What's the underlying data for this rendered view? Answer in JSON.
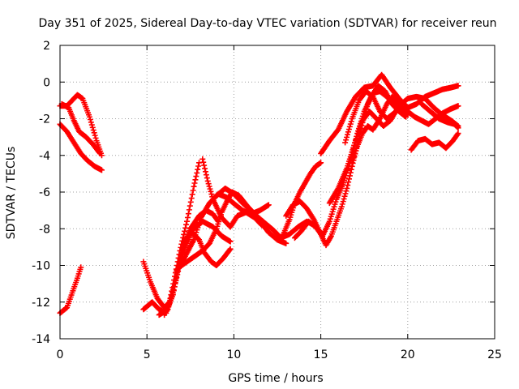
{
  "chart_data": {
    "type": "scatter",
    "title": "Day 351 of 2025, Sidereal Day-to-day VTEC variation (SDTVAR) for receiver reun",
    "xlabel": "GPS time / hours",
    "ylabel": "SDTVAR / TECUs",
    "xlim": [
      0,
      25
    ],
    "ylim": [
      -14,
      2
    ],
    "x_ticks": [
      0,
      5,
      10,
      15,
      20,
      25
    ],
    "y_ticks": [
      -14,
      -12,
      -10,
      -8,
      -6,
      -4,
      -2,
      0,
      2
    ],
    "x_tick_labels": [
      "0",
      "5",
      "10",
      "15",
      "20",
      "25"
    ],
    "y_tick_labels": [
      "-14",
      "-12",
      "-10",
      "-8",
      "-6",
      "-4",
      "-2",
      "0",
      "2"
    ],
    "grid": true,
    "marker": "plus",
    "color": "#ff0000",
    "series": [
      {
        "values": [
          [
            0.0,
            -1.3
          ],
          [
            0.4,
            -1.3
          ],
          [
            0.7,
            -1.0
          ],
          [
            1.0,
            -0.7
          ],
          [
            1.3,
            -0.9
          ],
          [
            1.7,
            -1.9
          ],
          [
            2.1,
            -3.2
          ],
          [
            2.4,
            -4.0
          ]
        ]
      },
      {
        "values": [
          [
            0.1,
            -1.2
          ],
          [
            0.5,
            -1.4
          ],
          [
            0.8,
            -2.1
          ],
          [
            1.1,
            -2.7
          ],
          [
            1.5,
            -3.0
          ],
          [
            1.9,
            -3.4
          ],
          [
            2.3,
            -3.9
          ]
        ]
      },
      {
        "values": [
          [
            0.0,
            -2.3
          ],
          [
            0.4,
            -2.7
          ],
          [
            0.8,
            -3.3
          ],
          [
            1.2,
            -3.9
          ],
          [
            1.6,
            -4.3
          ],
          [
            2.0,
            -4.6
          ],
          [
            2.4,
            -4.8
          ]
        ]
      },
      {
        "values": [
          [
            0.0,
            -12.6
          ],
          [
            0.4,
            -12.3
          ],
          [
            0.7,
            -11.5
          ],
          [
            1.0,
            -10.7
          ],
          [
            1.2,
            -10.1
          ]
        ]
      },
      {
        "values": [
          [
            4.8,
            -9.8
          ],
          [
            5.2,
            -10.9
          ],
          [
            5.6,
            -11.8
          ],
          [
            6.0,
            -12.3
          ],
          [
            6.3,
            -12.0
          ],
          [
            6.6,
            -10.6
          ],
          [
            6.9,
            -9.2
          ],
          [
            7.3,
            -7.6
          ],
          [
            7.7,
            -5.7
          ],
          [
            8.0,
            -4.4
          ]
        ]
      },
      {
        "values": [
          [
            4.8,
            -12.4
          ],
          [
            5.3,
            -12.0
          ],
          [
            5.7,
            -12.4
          ],
          [
            6.1,
            -12.6
          ],
          [
            6.5,
            -11.6
          ],
          [
            6.9,
            -9.6
          ],
          [
            7.2,
            -8.6
          ],
          [
            7.6,
            -8.2
          ],
          [
            8.0,
            -8.6
          ],
          [
            8.3,
            -9.3
          ],
          [
            8.7,
            -9.8
          ],
          [
            9.0,
            -10.0
          ],
          [
            9.4,
            -9.6
          ],
          [
            9.8,
            -9.1
          ]
        ]
      },
      {
        "values": [
          [
            5.7,
            -12.7
          ],
          [
            6.2,
            -12.4
          ],
          [
            6.6,
            -11.0
          ],
          [
            7.0,
            -9.2
          ],
          [
            7.5,
            -8.0
          ],
          [
            8.0,
            -7.3
          ],
          [
            8.4,
            -7.0
          ],
          [
            8.8,
            -7.2
          ],
          [
            9.1,
            -7.6
          ]
        ]
      },
      {
        "values": [
          [
            6.0,
            -12.7
          ],
          [
            6.5,
            -11.5
          ],
          [
            7.0,
            -9.5
          ],
          [
            7.6,
            -8.1
          ],
          [
            8.2,
            -7.6
          ],
          [
            8.8,
            -7.9
          ],
          [
            9.3,
            -8.4
          ],
          [
            9.8,
            -8.7
          ]
        ]
      },
      {
        "values": [
          [
            6.7,
            -10.3
          ],
          [
            7.2,
            -9.5
          ],
          [
            7.7,
            -8.6
          ],
          [
            8.1,
            -7.4
          ],
          [
            8.6,
            -6.6
          ],
          [
            9.1,
            -6.1
          ],
          [
            9.6,
            -6.3
          ],
          [
            10.1,
            -6.7
          ],
          [
            10.5,
            -7.0
          ],
          [
            11.0,
            -7.2
          ],
          [
            11.5,
            -7.0
          ],
          [
            12.0,
            -6.7
          ]
        ]
      },
      {
        "values": [
          [
            7.0,
            -10.0
          ],
          [
            7.6,
            -9.6
          ],
          [
            8.2,
            -9.2
          ],
          [
            8.6,
            -8.8
          ],
          [
            9.0,
            -8.0
          ],
          [
            9.3,
            -7.1
          ],
          [
            9.6,
            -6.5
          ],
          [
            9.9,
            -6.0
          ],
          [
            10.3,
            -6.2
          ],
          [
            10.8,
            -6.8
          ],
          [
            11.3,
            -7.3
          ],
          [
            11.8,
            -7.7
          ],
          [
            12.3,
            -8.1
          ],
          [
            12.7,
            -8.5
          ],
          [
            13.2,
            -8.3
          ],
          [
            13.7,
            -7.9
          ],
          [
            14.2,
            -7.6
          ],
          [
            14.6,
            -7.8
          ],
          [
            15.0,
            -8.2
          ]
        ]
      },
      {
        "values": [
          [
            8.2,
            -4.2
          ],
          [
            8.5,
            -5.4
          ],
          [
            8.8,
            -6.4
          ],
          [
            9.3,
            -7.4
          ],
          [
            9.8,
            -7.9
          ],
          [
            10.2,
            -7.3
          ],
          [
            10.7,
            -7.1
          ],
          [
            11.2,
            -7.4
          ],
          [
            11.6,
            -7.8
          ]
        ]
      },
      {
        "values": [
          [
            9.0,
            -6.2
          ],
          [
            9.5,
            -5.8
          ],
          [
            10.0,
            -6.1
          ],
          [
            10.5,
            -6.6
          ],
          [
            11.0,
            -7.0
          ],
          [
            11.5,
            -7.6
          ],
          [
            12.0,
            -8.2
          ],
          [
            12.5,
            -8.6
          ],
          [
            13.0,
            -8.8
          ]
        ]
      },
      {
        "values": [
          [
            12.8,
            -8.4
          ],
          [
            13.2,
            -7.5
          ],
          [
            13.5,
            -6.6
          ],
          [
            13.8,
            -6.0
          ],
          [
            14.1,
            -5.5
          ],
          [
            14.4,
            -5.0
          ],
          [
            14.7,
            -4.6
          ],
          [
            15.0,
            -4.4
          ]
        ]
      },
      {
        "values": [
          [
            13.0,
            -7.3
          ],
          [
            13.4,
            -6.7
          ],
          [
            13.8,
            -6.5
          ],
          [
            14.2,
            -6.9
          ],
          [
            14.6,
            -7.5
          ],
          [
            15.0,
            -8.3
          ],
          [
            15.3,
            -8.9
          ],
          [
            15.6,
            -8.4
          ],
          [
            15.9,
            -7.6
          ],
          [
            16.2,
            -6.8
          ],
          [
            16.5,
            -5.8
          ],
          [
            16.8,
            -4.6
          ],
          [
            17.1,
            -3.4
          ],
          [
            17.4,
            -2.2
          ],
          [
            17.7,
            -1.2
          ],
          [
            18.0,
            -0.6
          ],
          [
            18.4,
            -0.5
          ],
          [
            18.8,
            -0.8
          ],
          [
            19.2,
            -1.2
          ],
          [
            19.6,
            -1.5
          ],
          [
            20.0,
            -1.8
          ]
        ]
      },
      {
        "values": [
          [
            13.5,
            -8.5
          ],
          [
            13.9,
            -8.1
          ],
          [
            14.3,
            -7.6
          ],
          [
            14.7,
            -7.9
          ],
          [
            15.1,
            -8.4
          ],
          [
            15.5,
            -7.6
          ],
          [
            15.9,
            -6.4
          ],
          [
            16.3,
            -5.5
          ],
          [
            16.7,
            -4.3
          ],
          [
            17.1,
            -2.8
          ],
          [
            17.5,
            -1.6
          ],
          [
            17.9,
            -0.8
          ],
          [
            18.3,
            -0.2
          ],
          [
            18.7,
            -0.5
          ],
          [
            19.1,
            -1.2
          ],
          [
            19.5,
            -1.6
          ],
          [
            19.9,
            -1.9
          ]
        ]
      },
      {
        "values": [
          [
            15.0,
            -3.9
          ],
          [
            15.5,
            -3.2
          ],
          [
            16.0,
            -2.6
          ],
          [
            16.5,
            -1.6
          ],
          [
            17.0,
            -0.8
          ],
          [
            17.5,
            -0.3
          ],
          [
            18.0,
            -0.2
          ],
          [
            18.5,
            0.4
          ],
          [
            19.0,
            -0.3
          ],
          [
            19.5,
            -0.9
          ],
          [
            20.0,
            -1.4
          ],
          [
            20.5,
            -1.2
          ],
          [
            21.0,
            -0.8
          ],
          [
            21.5,
            -0.6
          ],
          [
            22.0,
            -0.4
          ],
          [
            22.5,
            -0.3
          ],
          [
            22.9,
            -0.2
          ]
        ]
      },
      {
        "values": [
          [
            15.5,
            -6.6
          ],
          [
            16.0,
            -5.8
          ],
          [
            16.5,
            -4.7
          ],
          [
            17.0,
            -3.2
          ],
          [
            17.4,
            -2.1
          ],
          [
            17.8,
            -1.6
          ],
          [
            18.2,
            -2.0
          ],
          [
            18.6,
            -2.4
          ],
          [
            19.0,
            -2.1
          ],
          [
            19.5,
            -1.3
          ],
          [
            20.0,
            -0.9
          ],
          [
            20.5,
            -0.8
          ],
          [
            21.0,
            -0.9
          ],
          [
            21.5,
            -1.4
          ],
          [
            22.0,
            -1.8
          ],
          [
            22.5,
            -2.1
          ],
          [
            22.9,
            -2.4
          ]
        ]
      },
      {
        "values": [
          [
            16.4,
            -3.3
          ],
          [
            16.8,
            -2.0
          ],
          [
            17.2,
            -1.0
          ],
          [
            17.6,
            -0.5
          ],
          [
            18.0,
            -0.8
          ],
          [
            18.4,
            -1.6
          ],
          [
            18.8,
            -2.0
          ],
          [
            19.2,
            -1.7
          ],
          [
            19.6,
            -1.4
          ],
          [
            20.0,
            -1.6
          ],
          [
            20.4,
            -1.9
          ],
          [
            20.8,
            -2.1
          ],
          [
            21.2,
            -2.3
          ],
          [
            21.6,
            -2.0
          ],
          [
            22.0,
            -1.7
          ],
          [
            22.4,
            -1.5
          ],
          [
            22.9,
            -1.3
          ]
        ]
      },
      {
        "values": [
          [
            16.8,
            -4.4
          ],
          [
            17.1,
            -3.5
          ],
          [
            17.4,
            -2.8
          ],
          [
            17.7,
            -2.4
          ],
          [
            18.0,
            -2.6
          ],
          [
            18.4,
            -2.0
          ],
          [
            18.8,
            -1.2
          ],
          [
            19.1,
            -0.8
          ],
          [
            19.4,
            -1.1
          ],
          [
            19.8,
            -1.6
          ]
        ]
      },
      {
        "values": [
          [
            20.2,
            -3.7
          ],
          [
            20.6,
            -3.2
          ],
          [
            21.0,
            -3.1
          ],
          [
            21.4,
            -3.4
          ],
          [
            21.8,
            -3.3
          ],
          [
            22.2,
            -3.6
          ],
          [
            22.6,
            -3.2
          ],
          [
            22.9,
            -2.8
          ]
        ]
      },
      {
        "values": [
          [
            20.8,
            -1.2
          ],
          [
            21.3,
            -1.6
          ],
          [
            21.8,
            -2.0
          ],
          [
            22.3,
            -2.2
          ],
          [
            22.7,
            -2.3
          ],
          [
            22.9,
            -2.5
          ]
        ]
      }
    ]
  }
}
